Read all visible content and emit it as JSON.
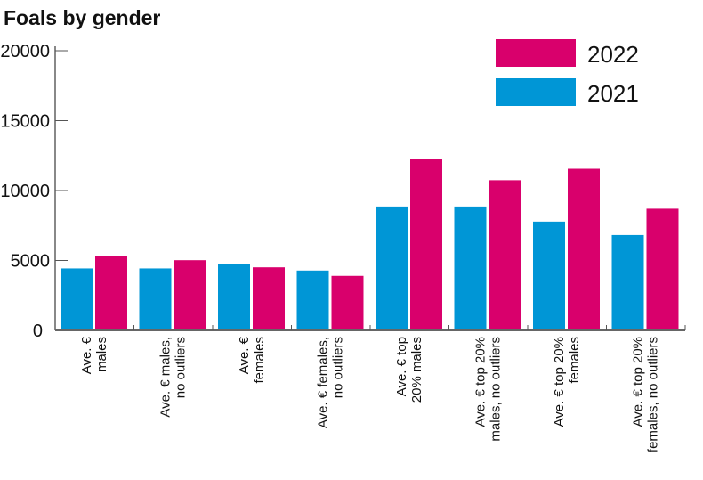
{
  "chart_data": {
    "type": "bar",
    "title": "Foals by gender",
    "xlabel": "",
    "ylabel": "",
    "ylim": [
      0,
      20000
    ],
    "yticks": [
      "0",
      "5000",
      "10000",
      "15000",
      "20000"
    ],
    "categories": [
      [
        "Ave. €",
        "males"
      ],
      [
        "Ave. € males,",
        "no outliers"
      ],
      [
        "Ave. €",
        "females"
      ],
      [
        "Ave. € females,",
        "no outliers"
      ],
      [
        "Ave. € top",
        "20% males"
      ],
      [
        "Ave. € top 20%",
        "males, no outliers"
      ],
      [
        "Ave. € top 20%",
        "females"
      ],
      [
        "Ave. € top 20%",
        "females, no outliers"
      ]
    ],
    "series": [
      {
        "name": "2021",
        "color": "#0096d6",
        "values": [
          4430,
          4430,
          4760,
          4280,
          8860,
          8860,
          7780,
          6820
        ]
      },
      {
        "name": "2022",
        "color": "#d9006c",
        "values": [
          5340,
          5020,
          4510,
          3900,
          12290,
          10740,
          11560,
          8700
        ]
      }
    ],
    "legend": {
      "placement": "top-right",
      "order": [
        "2022",
        "2021"
      ]
    },
    "grid": false
  }
}
